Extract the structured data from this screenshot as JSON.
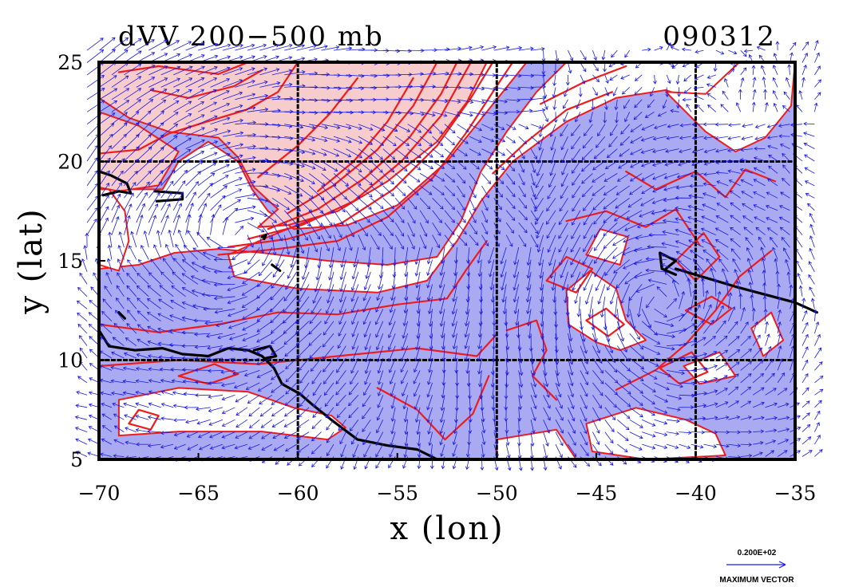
{
  "chart_data": {
    "type": "contour",
    "title": "dVV 200−500 mb",
    "date_label": "090312",
    "xlabel": "x (lon)",
    "ylabel": "y (lat)",
    "xlim": [
      -70,
      -35
    ],
    "ylim": [
      5,
      25
    ],
    "x_ticks": [
      -70,
      -65,
      -60,
      -55,
      -50,
      -45,
      -40,
      -35
    ],
    "x_tick_labels": [
      "−70",
      "−65",
      "−60",
      "−55",
      "−50",
      "−45",
      "−40",
      "−35"
    ],
    "y_ticks": [
      5,
      10,
      15,
      20,
      25
    ],
    "y_tick_labels": [
      "5",
      "10",
      "15",
      "20",
      "25"
    ],
    "gridlines_lon": [
      -60,
      -50,
      -40
    ],
    "gridlines_lat": [
      10,
      20
    ],
    "grid": true,
    "vector_legend": {
      "value": "0.200E+02",
      "label": "MAXIMUM VECTOR"
    },
    "fill_regions": {
      "negative_color": "#aaaaf2",
      "positive_color": "#f7cccc",
      "contour_color": "#ee1c1c"
    },
    "vector_color": "#1a1ae6",
    "coastline_color": "#000000"
  }
}
